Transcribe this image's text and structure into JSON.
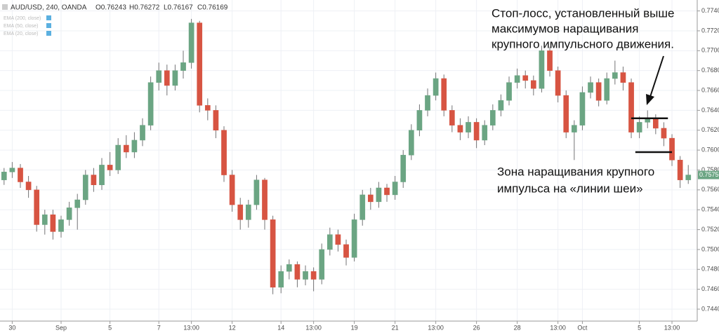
{
  "chart_data": {
    "type": "candlestick",
    "header": {
      "symbol": "AUD/USD, 240, OANDA",
      "values": [
        "O0.76243",
        "H0.76272",
        "L0.76167",
        "C0.76169"
      ]
    },
    "indicators": [
      "EMA (200, close)",
      "EMA (50, close)",
      "EMA (20, close)"
    ],
    "up_color": "#6ba583",
    "down_color": "#d75442",
    "wick_color": "#737375",
    "ylim": [
      0.7428,
      0.7751
    ],
    "yticks": [
      {
        "value": 0.744,
        "label": "0.74400"
      },
      {
        "value": 0.746,
        "label": "0.74600"
      },
      {
        "value": 0.748,
        "label": "0.74800"
      },
      {
        "value": 0.75,
        "label": "0.75000"
      },
      {
        "value": 0.752,
        "label": "0.75200"
      },
      {
        "value": 0.754,
        "label": "0.75400"
      },
      {
        "value": 0.756,
        "label": "0.75600"
      },
      {
        "value": 0.758,
        "label": "0.75800"
      },
      {
        "value": 0.76,
        "label": "0.76000"
      },
      {
        "value": 0.762,
        "label": "0.76200"
      },
      {
        "value": 0.764,
        "label": "0.76400"
      },
      {
        "value": 0.766,
        "label": "0.76600"
      },
      {
        "value": 0.768,
        "label": "0.76800"
      },
      {
        "value": 0.77,
        "label": "0.77000"
      },
      {
        "value": 0.772,
        "label": "0.77200"
      },
      {
        "value": 0.774,
        "label": "0.77400"
      }
    ],
    "last_price": {
      "value": 0.7575,
      "label": "0.75750"
    },
    "xlim": [
      -0.5,
      85.1
    ],
    "xticks": [
      {
        "value": 1,
        "label": "30"
      },
      {
        "value": 7,
        "label": "Sep"
      },
      {
        "value": 13,
        "label": "5"
      },
      {
        "value": 19,
        "label": "7"
      },
      {
        "value": 23,
        "label": "13:00"
      },
      {
        "value": 28,
        "label": "12"
      },
      {
        "value": 34,
        "label": "14"
      },
      {
        "value": 38,
        "label": "13:00"
      },
      {
        "value": 43,
        "label": "19"
      },
      {
        "value": 48,
        "label": "21"
      },
      {
        "value": 53,
        "label": "13:00"
      },
      {
        "value": 58,
        "label": "26"
      },
      {
        "value": 63,
        "label": "28"
      },
      {
        "value": 68,
        "label": "13:00"
      },
      {
        "value": 71,
        "label": "Oct"
      },
      {
        "value": 78,
        "label": "5"
      },
      {
        "value": 82,
        "label": "13:00"
      }
    ],
    "grid": true,
    "ohlc": [
      [
        0.757,
        0.7582,
        0.7565,
        0.7578
      ],
      [
        0.7578,
        0.7588,
        0.7572,
        0.7582
      ],
      [
        0.7582,
        0.7586,
        0.7562,
        0.7568
      ],
      [
        0.7568,
        0.7574,
        0.7552,
        0.756
      ],
      [
        0.756,
        0.7564,
        0.7518,
        0.7525
      ],
      [
        0.7525,
        0.754,
        0.7515,
        0.7535
      ],
      [
        0.7535,
        0.754,
        0.751,
        0.7518
      ],
      [
        0.7518,
        0.7534,
        0.7512,
        0.753
      ],
      [
        0.753,
        0.7548,
        0.7524,
        0.7542
      ],
      [
        0.7542,
        0.7556,
        0.752,
        0.755
      ],
      [
        0.755,
        0.758,
        0.7545,
        0.7575
      ],
      [
        0.7575,
        0.7582,
        0.7558,
        0.7565
      ],
      [
        0.7565,
        0.7592,
        0.756,
        0.7585
      ],
      [
        0.7585,
        0.7598,
        0.7574,
        0.758
      ],
      [
        0.758,
        0.7612,
        0.7576,
        0.7605
      ],
      [
        0.7605,
        0.7615,
        0.7592,
        0.7598
      ],
      [
        0.7598,
        0.7618,
        0.7592,
        0.761
      ],
      [
        0.761,
        0.7632,
        0.7604,
        0.7625
      ],
      [
        0.7625,
        0.7674,
        0.762,
        0.7668
      ],
      [
        0.7668,
        0.7688,
        0.766,
        0.768
      ],
      [
        0.768,
        0.7686,
        0.7655,
        0.7665
      ],
      [
        0.7665,
        0.7686,
        0.766,
        0.768
      ],
      [
        0.768,
        0.77,
        0.7672,
        0.7688
      ],
      [
        0.7688,
        0.7732,
        0.7682,
        0.7728
      ],
      [
        0.7728,
        0.773,
        0.7638,
        0.7645
      ],
      [
        0.7645,
        0.7652,
        0.763,
        0.764
      ],
      [
        0.764,
        0.7645,
        0.7612,
        0.762
      ],
      [
        0.762,
        0.7624,
        0.7568,
        0.7575
      ],
      [
        0.7575,
        0.758,
        0.7538,
        0.7545
      ],
      [
        0.7545,
        0.7552,
        0.752,
        0.753
      ],
      [
        0.753,
        0.755,
        0.7522,
        0.7545
      ],
      [
        0.7545,
        0.7575,
        0.754,
        0.757
      ],
      [
        0.757,
        0.7572,
        0.752,
        0.753
      ],
      [
        0.753,
        0.7534,
        0.7455,
        0.7462
      ],
      [
        0.7462,
        0.7484,
        0.7456,
        0.7478
      ],
      [
        0.7478,
        0.749,
        0.747,
        0.7485
      ],
      [
        0.7485,
        0.7488,
        0.7462,
        0.747
      ],
      [
        0.747,
        0.7484,
        0.7464,
        0.7478
      ],
      [
        0.7478,
        0.7482,
        0.7458,
        0.747
      ],
      [
        0.747,
        0.7506,
        0.7465,
        0.75
      ],
      [
        0.75,
        0.7522,
        0.7494,
        0.7515
      ],
      [
        0.7515,
        0.752,
        0.7498,
        0.7505
      ],
      [
        0.7505,
        0.751,
        0.7484,
        0.7492
      ],
      [
        0.7492,
        0.7536,
        0.7488,
        0.753
      ],
      [
        0.753,
        0.756,
        0.7524,
        0.7555
      ],
      [
        0.7555,
        0.7562,
        0.754,
        0.7548
      ],
      [
        0.7548,
        0.7568,
        0.7542,
        0.7562
      ],
      [
        0.7562,
        0.7566,
        0.7548,
        0.7555
      ],
      [
        0.7555,
        0.7574,
        0.755,
        0.7568
      ],
      [
        0.7568,
        0.76,
        0.7562,
        0.7595
      ],
      [
        0.7595,
        0.7626,
        0.759,
        0.762
      ],
      [
        0.762,
        0.7646,
        0.7614,
        0.764
      ],
      [
        0.764,
        0.7662,
        0.7634,
        0.7655
      ],
      [
        0.7655,
        0.7678,
        0.765,
        0.7672
      ],
      [
        0.7672,
        0.7676,
        0.7634,
        0.764
      ],
      [
        0.764,
        0.7645,
        0.7618,
        0.7625
      ],
      [
        0.7625,
        0.7632,
        0.761,
        0.7618
      ],
      [
        0.7618,
        0.7634,
        0.7612,
        0.7628
      ],
      [
        0.7628,
        0.7632,
        0.7602,
        0.761
      ],
      [
        0.761,
        0.763,
        0.7605,
        0.7625
      ],
      [
        0.7625,
        0.7646,
        0.762,
        0.764
      ],
      [
        0.764,
        0.7656,
        0.7634,
        0.765
      ],
      [
        0.765,
        0.7674,
        0.7645,
        0.7668
      ],
      [
        0.7668,
        0.7682,
        0.7662,
        0.7675
      ],
      [
        0.7675,
        0.768,
        0.7662,
        0.767
      ],
      [
        0.767,
        0.7675,
        0.7655,
        0.7662
      ],
      [
        0.7662,
        0.7705,
        0.7658,
        0.77
      ],
      [
        0.77,
        0.7704,
        0.7674,
        0.768
      ],
      [
        0.768,
        0.7684,
        0.7648,
        0.7655
      ],
      [
        0.7655,
        0.766,
        0.7612,
        0.7618
      ],
      [
        0.7618,
        0.763,
        0.759,
        0.7625
      ],
      [
        0.7625,
        0.7664,
        0.762,
        0.7658
      ],
      [
        0.7658,
        0.7674,
        0.7652,
        0.7668
      ],
      [
        0.7668,
        0.7672,
        0.7644,
        0.765
      ],
      [
        0.765,
        0.7678,
        0.7646,
        0.7672
      ],
      [
        0.7672,
        0.769,
        0.7666,
        0.7678
      ],
      [
        0.7678,
        0.7684,
        0.766,
        0.7668
      ],
      [
        0.7668,
        0.7672,
        0.7612,
        0.7618
      ],
      [
        0.7618,
        0.7634,
        0.7612,
        0.7628
      ],
      [
        0.7628,
        0.764,
        0.7622,
        0.7632
      ],
      [
        0.7632,
        0.7636,
        0.7616,
        0.7622
      ],
      [
        0.7622,
        0.7628,
        0.7604,
        0.7612
      ],
      [
        0.7612,
        0.7616,
        0.7584,
        0.759
      ],
      [
        0.759,
        0.7594,
        0.7562,
        0.757
      ],
      [
        0.757,
        0.7585,
        0.7566,
        0.7575
      ]
    ],
    "levels": [
      {
        "value": 0.7632,
        "from": 77,
        "to": 81.5
      },
      {
        "value": 0.7598,
        "from": 77.5,
        "to": 82
      }
    ],
    "annotations": [
      [
        "Стоп-лосс, установленный выше",
        "максимумов наращивания",
        "крупного импульсного движения."
      ],
      [
        "Зона наращивания крупного",
        "импульса на «линии шеи»"
      ]
    ]
  }
}
